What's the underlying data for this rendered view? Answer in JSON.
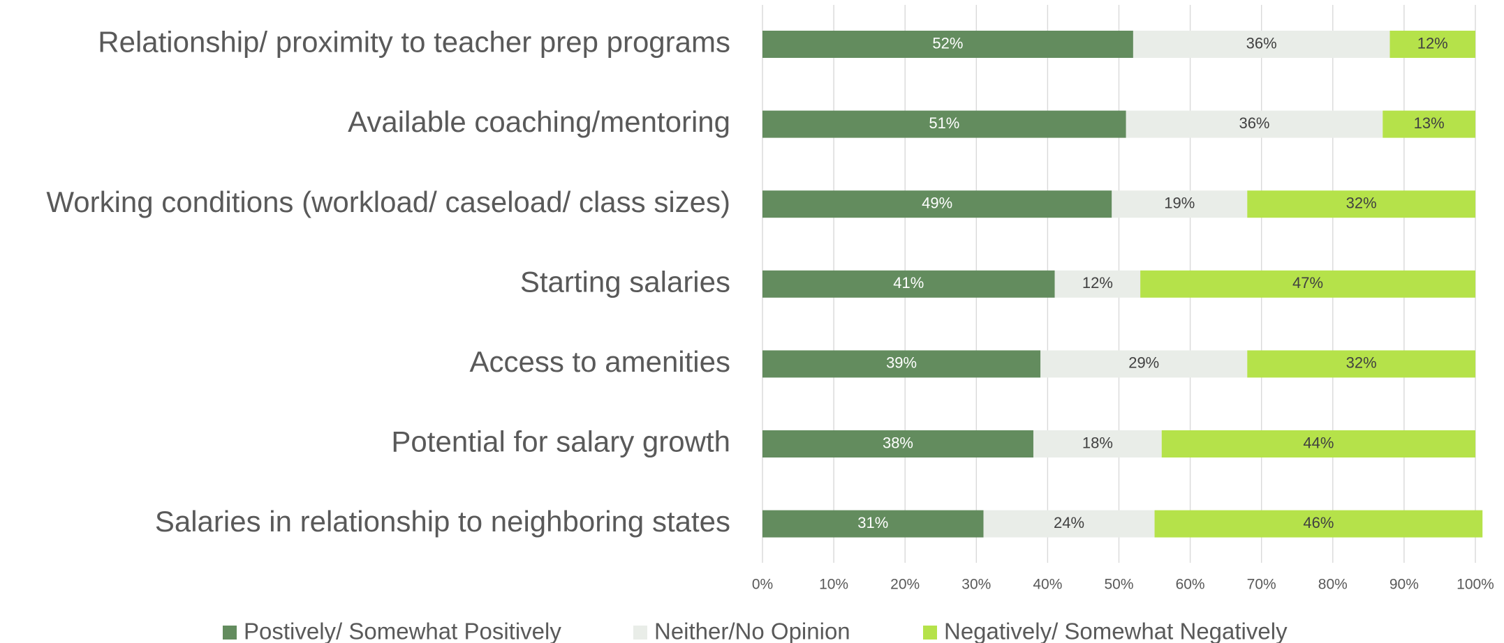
{
  "chart_data": {
    "type": "stacked-bar-horizontal",
    "categories": [
      "Relationship/ proximity to teacher prep programs",
      "Available coaching/mentoring",
      "Working conditions (workload/ caseload/ class sizes)",
      "Starting salaries",
      "Access to amenities",
      "Potential for salary growth",
      "Salaries in relationship to neighboring states"
    ],
    "series": [
      {
        "name": "Postively/ Somewhat Positively",
        "color": "#638c5e",
        "values": [
          52,
          51,
          49,
          41,
          39,
          38,
          31
        ],
        "value_labels": [
          "52%",
          "51%",
          "49%",
          "41%",
          "39%",
          "38%",
          "31%"
        ]
      },
      {
        "name": "Neither/No Opinion",
        "color": "#e9ede8",
        "values": [
          36,
          36,
          19,
          12,
          29,
          18,
          24
        ],
        "value_labels": [
          "36%",
          "36%",
          "19%",
          "12%",
          "29%",
          "18%",
          "24%"
        ]
      },
      {
        "name": "Negatively/ Somewhat Negatively",
        "color": "#b5e24a",
        "values": [
          12,
          13,
          32,
          47,
          32,
          44,
          46
        ],
        "value_labels": [
          "12%",
          "13%",
          "32%",
          "47%",
          "32%",
          "44%",
          "46%"
        ]
      }
    ],
    "xlim": [
      0,
      100
    ],
    "xticks": [
      {
        "value": 0,
        "label": "0%"
      },
      {
        "value": 10,
        "label": "10%"
      },
      {
        "value": 20,
        "label": "20%"
      },
      {
        "value": 30,
        "label": "30%"
      },
      {
        "value": 40,
        "label": "40%"
      },
      {
        "value": 50,
        "label": "50%"
      },
      {
        "value": 60,
        "label": "60%"
      },
      {
        "value": 70,
        "label": "70%"
      },
      {
        "value": 80,
        "label": "80%"
      },
      {
        "value": 90,
        "label": "90%"
      },
      {
        "value": 100,
        "label": "100%"
      }
    ],
    "grid": true,
    "legend": "bottom"
  }
}
